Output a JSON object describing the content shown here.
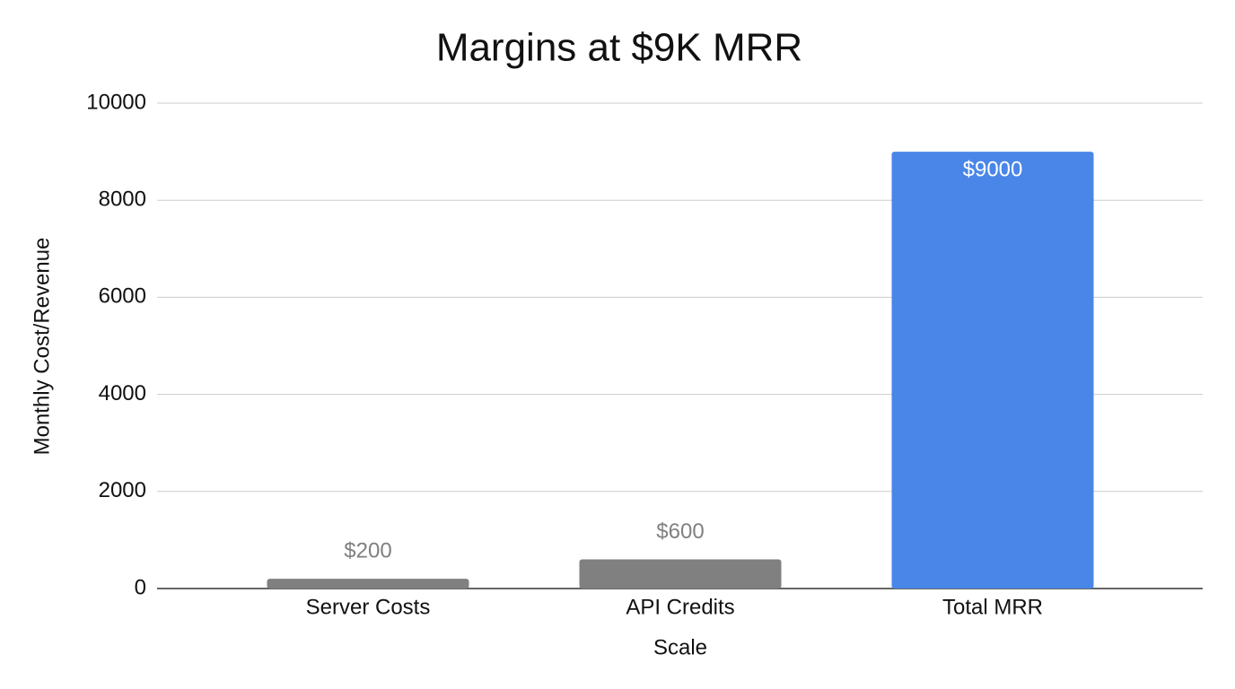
{
  "chart_data": {
    "type": "bar",
    "title": "Margins at $9K MRR",
    "categories": [
      "Server Costs",
      "API Credits",
      "Total MRR"
    ],
    "values": [
      200,
      600,
      9000
    ],
    "value_labels": [
      "$200",
      "$600",
      "$9000"
    ],
    "colors": [
      "#808080",
      "#808080",
      "#4a86e8"
    ],
    "xlabel": "Scale",
    "ylabel": "Monthly Cost/Revenue",
    "ylim": [
      0,
      10000
    ],
    "yticks": [
      0,
      2000,
      4000,
      6000,
      8000,
      10000
    ],
    "grid": true
  }
}
